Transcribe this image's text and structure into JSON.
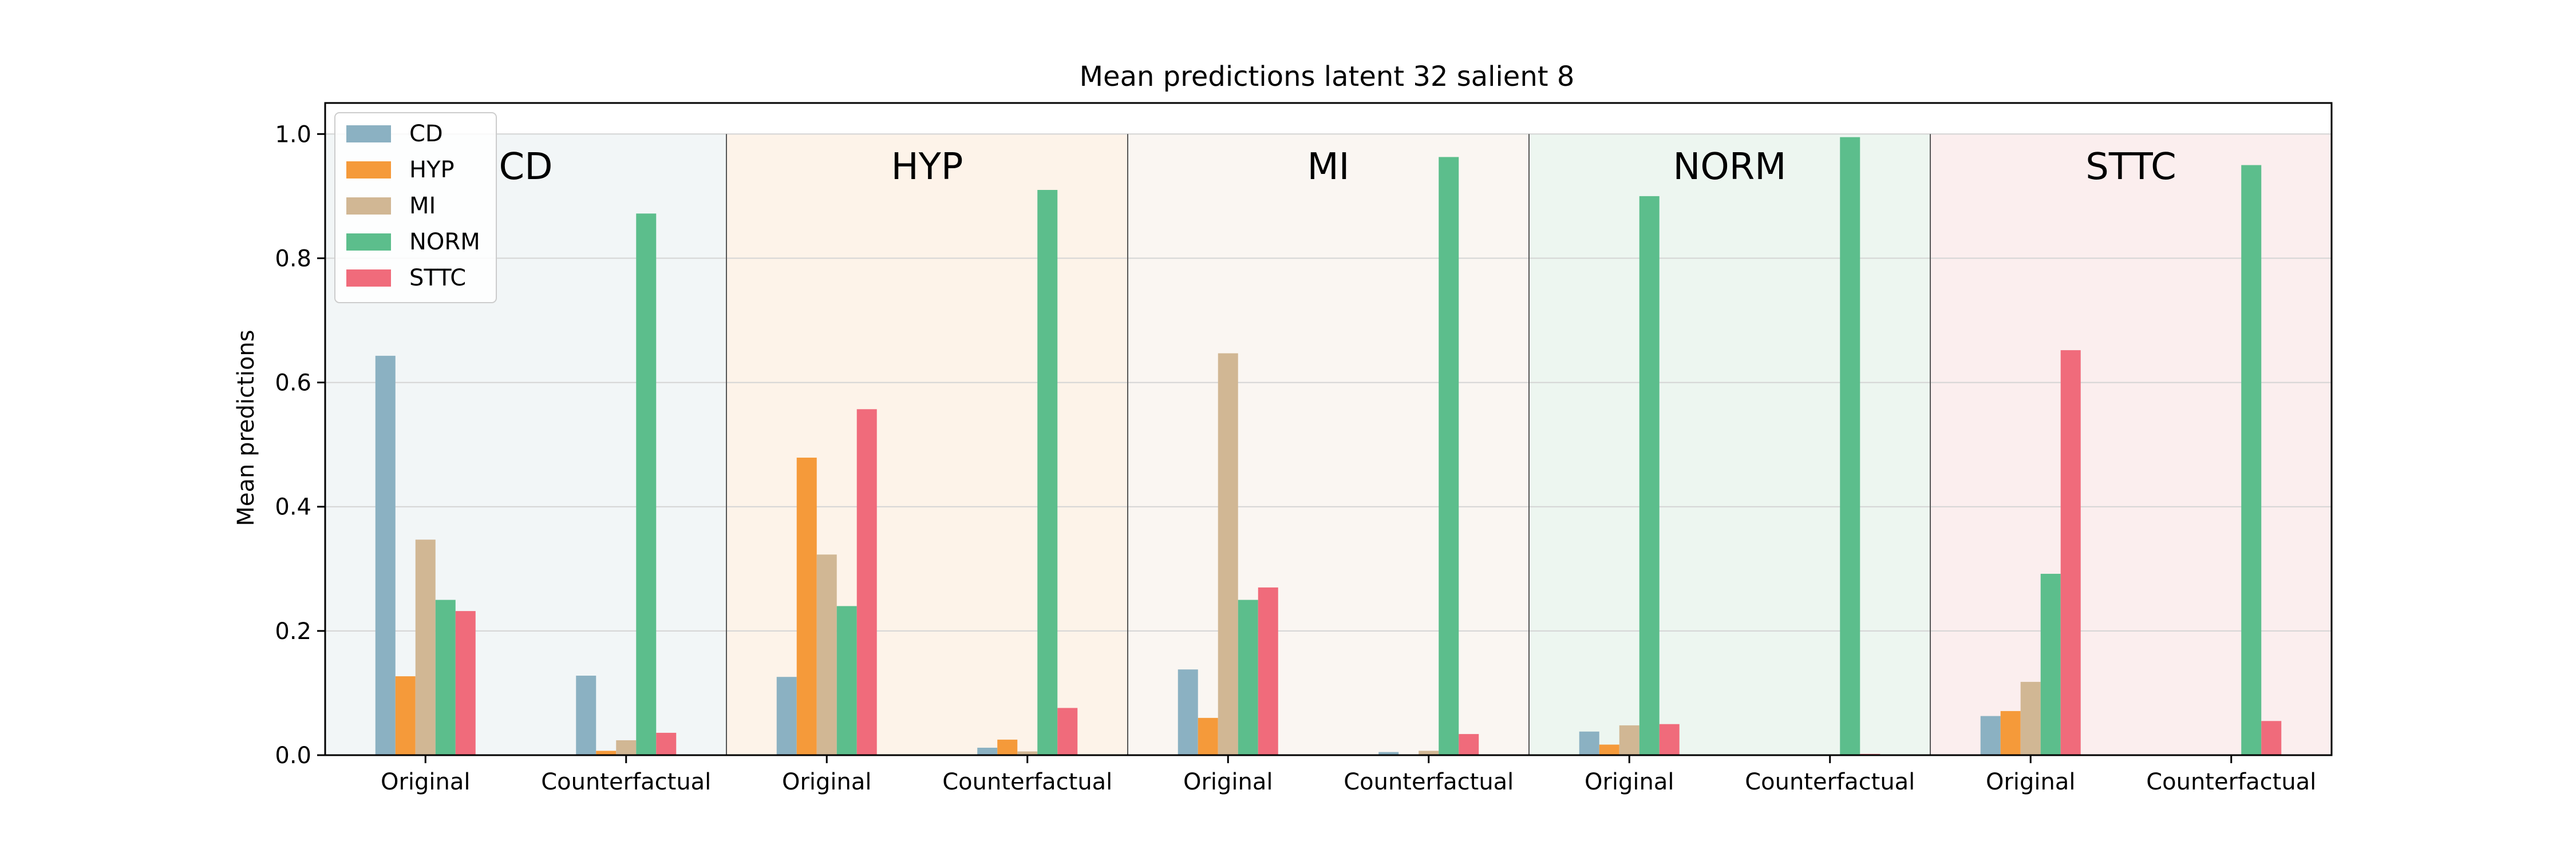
{
  "chart_data": {
    "type": "bar",
    "title": "Mean predictions latent 32 salient 8",
    "ylabel": "Mean predictions",
    "xlabel": "",
    "ylim": [
      0,
      1.05
    ],
    "yticks": [
      "0.0",
      "0.2",
      "0.4",
      "0.6",
      "0.8",
      "1.0"
    ],
    "grid": true,
    "legend_position": "top-left",
    "series_names": [
      "CD",
      "HYP",
      "MI",
      "NORM",
      "STTC"
    ],
    "series_colors": [
      "#8bb1c2",
      "#f59a3a",
      "#d1b794",
      "#5cbe8c",
      "#f06b7b"
    ],
    "group_labels": [
      "Original",
      "Counterfactual"
    ],
    "panels": [
      {
        "label": "CD",
        "background": "#f2f6f7",
        "groups": [
          {
            "x": "Original",
            "values": [
              0.643,
              0.127,
              0.347,
              0.25,
              0.232
            ]
          },
          {
            "x": "Counterfactual",
            "values": [
              0.128,
              0.007,
              0.024,
              0.872,
              0.036
            ]
          }
        ]
      },
      {
        "label": "HYP",
        "background": "#fdf3e9",
        "groups": [
          {
            "x": "Original",
            "values": [
              0.126,
              0.479,
              0.323,
              0.24,
              0.557
            ]
          },
          {
            "x": "Counterfactual",
            "values": [
              0.012,
              0.025,
              0.006,
              0.91,
              0.076
            ]
          }
        ]
      },
      {
        "label": "MI",
        "background": "#faf6f2",
        "groups": [
          {
            "x": "Original",
            "values": [
              0.138,
              0.06,
              0.647,
              0.25,
              0.27
            ]
          },
          {
            "x": "Counterfactual",
            "values": [
              0.005,
              0.001,
              0.007,
              0.963,
              0.034
            ]
          }
        ]
      },
      {
        "label": "NORM",
        "background": "#edf6f0",
        "groups": [
          {
            "x": "Original",
            "values": [
              0.038,
              0.017,
              0.048,
              0.9,
              0.05
            ]
          },
          {
            "x": "Counterfactual",
            "values": [
              0.001,
              0.001,
              0.001,
              0.995,
              0.002
            ]
          }
        ]
      },
      {
        "label": "STTC",
        "background": "#fbeeee",
        "groups": [
          {
            "x": "Original",
            "values": [
              0.063,
              0.071,
              0.118,
              0.292,
              0.652
            ]
          },
          {
            "x": "Counterfactual",
            "values": [
              0.001,
              0.001,
              0.001,
              0.95,
              0.055
            ]
          }
        ]
      }
    ]
  }
}
